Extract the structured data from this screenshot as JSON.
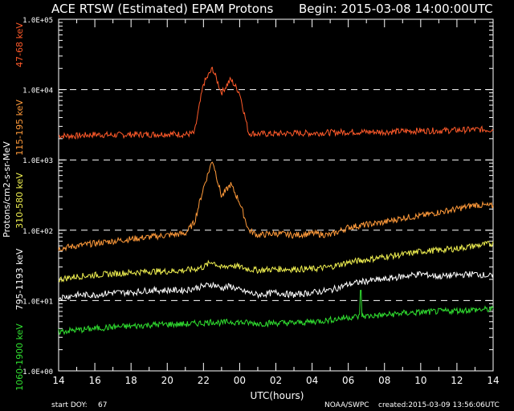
{
  "title_left": "ACE RTSW (Estimated) EPAM Protons",
  "title_right": "Begin: 2015-03-08 14:00:00UTC",
  "footer": {
    "start_doy_label": "start DOY:",
    "start_doy_value": "67",
    "source": "NOAA/SWPC",
    "created": "created:2015-03-09 13:56:06UTC"
  },
  "colors": {
    "background": "#000000",
    "axes": "#ffffff",
    "gridline": "#ffffff",
    "ch_47_68": "#ff5a2a",
    "ch_115_195": "#ff9a3a",
    "ch_310_580": "#f0f050",
    "ch_795_1193": "#ffffff",
    "ch_1060_1900": "#30e030"
  },
  "chart_data": {
    "type": "line",
    "title": "ACE RTSW (Estimated) EPAM Protons",
    "xlabel": "UTC(hours)",
    "ylabel": "Protons/cm2-s-sr-MeV",
    "yscale": "log",
    "xlim": [
      0,
      24
    ],
    "ylim": [
      1,
      100000
    ],
    "x_ticks": [
      "14",
      "16",
      "18",
      "20",
      "22",
      "00",
      "02",
      "04",
      "06",
      "08",
      "10",
      "12",
      "14"
    ],
    "y_ticks": [
      "1.0E+00",
      "1.0E+01",
      "1.0E+02",
      "1.0E+03",
      "1.0E+04",
      "1.0E+05"
    ],
    "dashed_gridlines_at": [
      10,
      100,
      1000,
      10000
    ],
    "x_points": [
      0,
      1,
      2,
      3,
      4,
      5,
      6,
      7,
      7.5,
      8,
      8.5,
      9,
      9.5,
      10,
      10.5,
      11,
      12,
      13,
      14,
      15,
      16,
      17,
      18,
      19,
      20,
      21,
      22,
      23,
      24
    ],
    "series": [
      {
        "name": "47-68 keV",
        "color_key": "ch_47_68",
        "values": [
          2200,
          2200,
          2300,
          2250,
          2300,
          2300,
          2350,
          2300,
          2400,
          12000,
          20000,
          9000,
          14000,
          9000,
          2400,
          2350,
          2350,
          2400,
          2400,
          2450,
          2500,
          2500,
          2500,
          2550,
          2600,
          2600,
          2650,
          2700,
          2700
        ]
      },
      {
        "name": "115-195 keV",
        "color_key": "ch_115_195",
        "values": [
          55,
          60,
          65,
          70,
          75,
          80,
          85,
          90,
          130,
          400,
          1000,
          300,
          450,
          250,
          100,
          85,
          90,
          85,
          90,
          85,
          110,
          120,
          130,
          150,
          160,
          180,
          200,
          230,
          220
        ]
      },
      {
        "name": "310-580 keV",
        "color_key": "ch_310_580",
        "values": [
          20,
          22,
          23,
          24,
          25,
          26,
          26,
          27,
          28,
          30,
          36,
          29,
          32,
          30,
          28,
          27,
          28,
          28,
          28,
          30,
          35,
          38,
          42,
          45,
          50,
          52,
          55,
          60,
          65
        ]
      },
      {
        "name": "795-1193 keV",
        "color_key": "ch_795_1193",
        "values": [
          11,
          12,
          12,
          13,
          13,
          14,
          14,
          14,
          15,
          16,
          17,
          15,
          16,
          14,
          13,
          12,
          13,
          12,
          13,
          14,
          17,
          19,
          20,
          22,
          24,
          22,
          23,
          24,
          22
        ]
      },
      {
        "name": "1060-1900 keV",
        "color_key": "ch_1060_1900",
        "values": [
          3.6,
          3.8,
          4,
          4.2,
          4.3,
          4.5,
          4.6,
          4.6,
          4.7,
          4.8,
          5,
          4.8,
          5,
          4.9,
          4.8,
          4.7,
          4.8,
          4.8,
          5,
          5.3,
          5.8,
          6,
          6.2,
          6.6,
          6.8,
          7,
          7.2,
          7.4,
          7.5
        ]
      }
    ],
    "spike": {
      "series": "1060-1900 keV",
      "x": 16.7,
      "value": 14
    }
  }
}
